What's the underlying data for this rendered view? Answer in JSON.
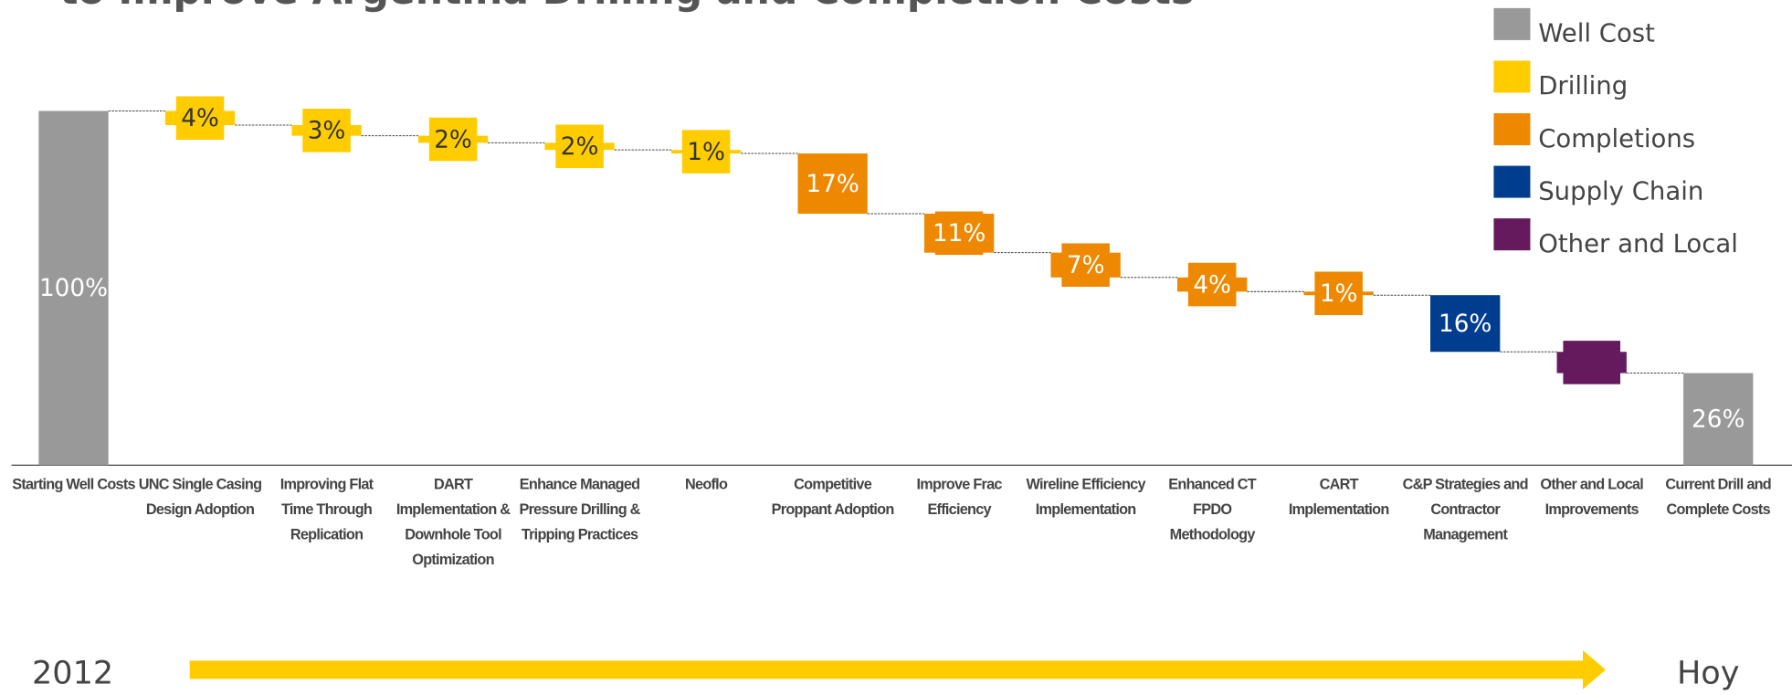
{
  "chart_data": {
    "type": "waterfall",
    "title": "to Improve Argentina Drilling and Completion Costs",
    "categories": [
      "Starting Well Costs",
      "UNC Single Casing Design Adoption",
      "Improving Flat Time Through Replication",
      "DART Implementation & Downhole Tool Optimization",
      "Enhance Managed Pressure Drilling & Tripping Practices",
      "Neoflo",
      "Competitive Proppant Adoption",
      "Improve Frac Efficiency",
      "Wireline Efficiency Implementation",
      "Enhanced CT FPDO Methodology",
      "CART Implementation",
      "C&P Strategies and Contractor Management",
      "Other and Local Improvements",
      "Current Drill and Complete Costs"
    ],
    "series": [
      {
        "name": "Well Cost",
        "color": "#999999",
        "values": [
          100,
          null,
          null,
          null,
          null,
          null,
          null,
          null,
          null,
          null,
          null,
          null,
          null,
          26
        ],
        "value_labels": [
          "100%",
          null,
          null,
          null,
          null,
          null,
          null,
          null,
          null,
          null,
          null,
          null,
          null,
          "26%"
        ]
      },
      {
        "name": "Drilling",
        "color": "#ffcc00",
        "values": [
          null,
          4,
          3,
          2,
          2,
          1,
          null,
          null,
          null,
          null,
          null,
          null,
          null,
          null
        ],
        "value_labels": [
          null,
          "4%",
          "3%",
          "2%",
          "2%",
          "1%",
          null,
          null,
          null,
          null,
          null,
          null,
          null,
          null
        ]
      },
      {
        "name": "Completions",
        "color": "#ee8800",
        "values": [
          null,
          null,
          null,
          null,
          null,
          null,
          17,
          11,
          7,
          4,
          1,
          null,
          null,
          null
        ],
        "value_labels": [
          null,
          null,
          null,
          null,
          null,
          null,
          "17%",
          "11%",
          "7%",
          "4%",
          "1%",
          null,
          null,
          null
        ]
      },
      {
        "name": "Supply Chain",
        "color": "#003d8f",
        "values": [
          null,
          null,
          null,
          null,
          null,
          null,
          null,
          null,
          null,
          null,
          null,
          16,
          null,
          null
        ],
        "value_labels": [
          null,
          null,
          null,
          null,
          null,
          null,
          null,
          null,
          null,
          null,
          null,
          "16%",
          null,
          null
        ]
      },
      {
        "name": "Other and Local",
        "color": "#661a5e",
        "values": [
          null,
          null,
          null,
          null,
          null,
          null,
          null,
          null,
          null,
          null,
          null,
          null,
          6,
          null
        ],
        "value_labels": [
          null,
          null,
          null,
          null,
          null,
          null,
          null,
          null,
          null,
          null,
          null,
          null,
          null,
          null
        ]
      }
    ],
    "ylim": [
      0,
      100
    ],
    "legend": "top-right"
  },
  "timeline": {
    "start": "2012",
    "end": "Hoy"
  }
}
